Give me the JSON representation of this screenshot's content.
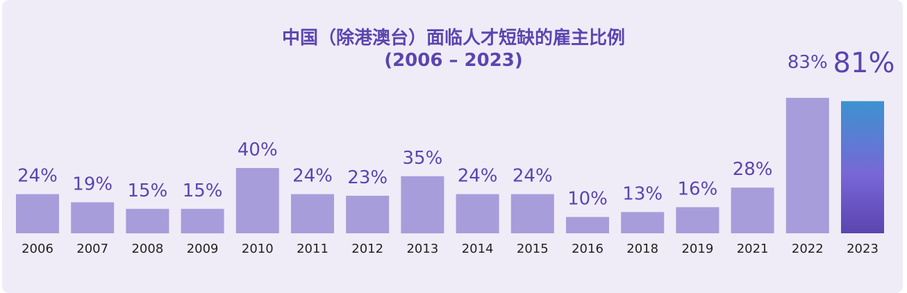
{
  "chart_data": {
    "type": "bar",
    "title": "中国（除港澳台）面临人才短缺的雇主比例",
    "subtitle": "(2006 – 2023)",
    "categories": [
      "2006",
      "2007",
      "2008",
      "2009",
      "2010",
      "2011",
      "2012",
      "2013",
      "2014",
      "2015",
      "2016",
      "2018",
      "2019",
      "2021",
      "2022",
      "2023"
    ],
    "values": [
      24,
      19,
      15,
      15,
      40,
      24,
      23,
      35,
      24,
      24,
      10,
      13,
      16,
      28,
      83,
      81
    ],
    "value_labels": [
      "24%",
      "19%",
      "15%",
      "15%",
      "40%",
      "24%",
      "23%",
      "35%",
      "24%",
      "24%",
      "10%",
      "13%",
      "16%",
      "28%",
      "83%",
      "81%"
    ],
    "ylim": [
      0,
      100
    ],
    "grid": false,
    "highlight_category": "2023",
    "colors": {
      "bar": "#a89ddb",
      "highlight_top": "#3c93d0",
      "highlight_mid": "#7867d6",
      "highlight_bottom": "#5b45b0",
      "label": "#5b45b0",
      "background": "#efecf7"
    }
  }
}
